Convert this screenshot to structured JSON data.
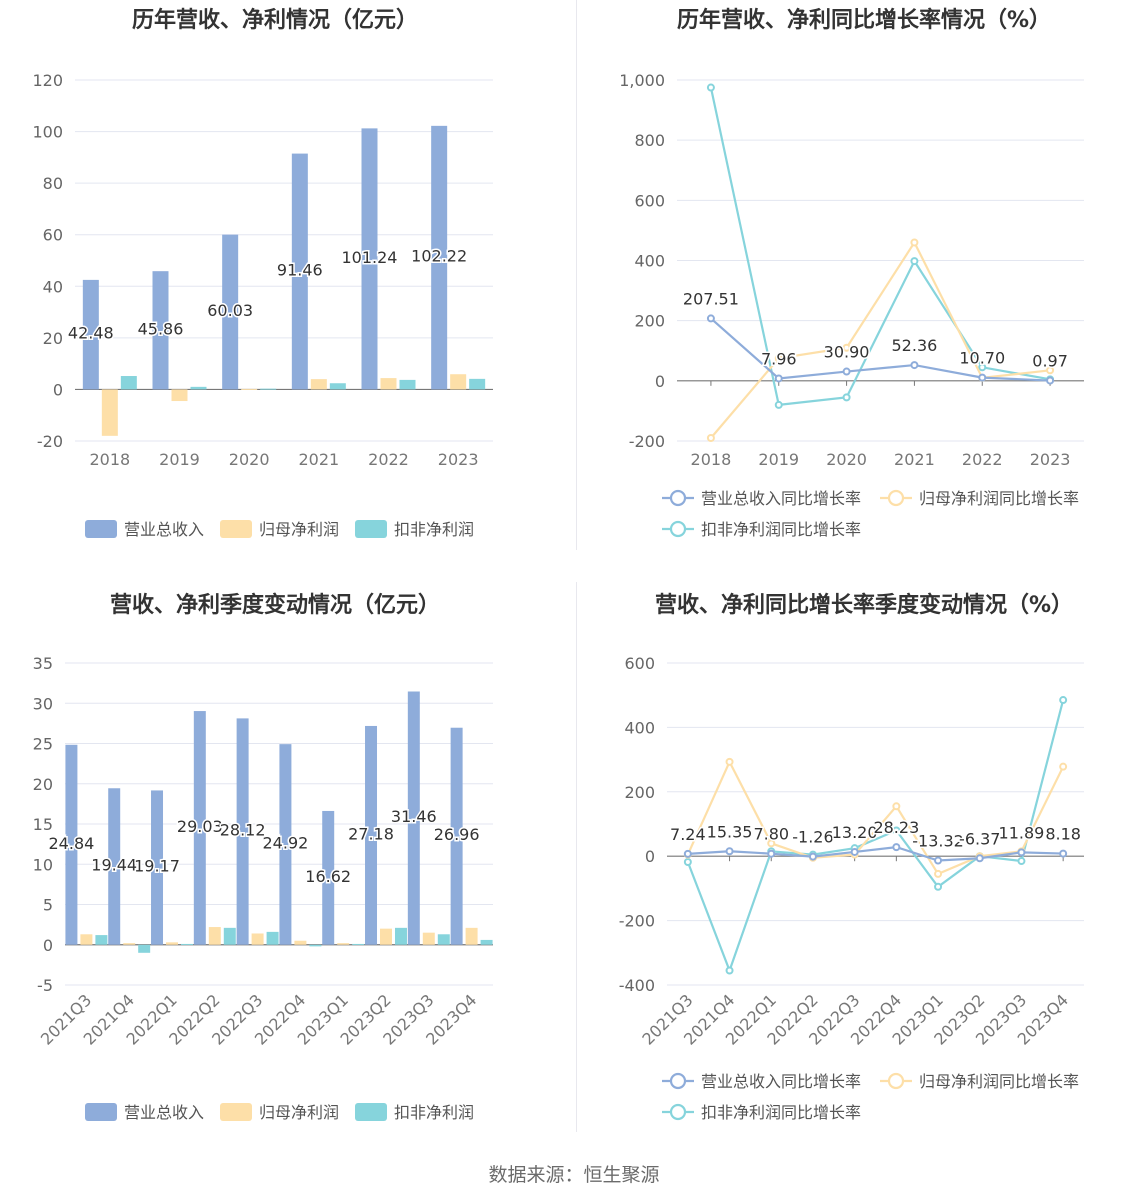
{
  "source_label": "数据来源：恒生聚源",
  "colors": {
    "revenue": "#8eacda",
    "net_profit": "#fddfa8",
    "deducted_profit": "#86d4dc"
  },
  "chart_data": [
    {
      "type": "bar",
      "title": "历年营收、净利情况（亿元）",
      "categories": [
        "2018",
        "2019",
        "2020",
        "2021",
        "2022",
        "2023"
      ],
      "ylim": [
        -20,
        120
      ],
      "yticks": [
        -20,
        0,
        20,
        40,
        60,
        80,
        100,
        120
      ],
      "ytick_labels": [
        "-20",
        "0",
        "20",
        "40",
        "60",
        "80",
        "100",
        "120"
      ],
      "legend": "bottom",
      "series": [
        {
          "name": "营业总收入",
          "color": "#8eacda",
          "values": [
            42.48,
            45.86,
            60.03,
            91.46,
            101.24,
            102.22
          ],
          "labels": [
            "42.48",
            "45.86",
            "60.03",
            "91.46",
            "101.24",
            "102.22"
          ]
        },
        {
          "name": "归母净利润",
          "color": "#fddfa8",
          "values": [
            -18.0,
            -4.5,
            0.2,
            4.0,
            4.4,
            5.9
          ],
          "labels": []
        },
        {
          "name": "扣非净利润",
          "color": "#86d4dc",
          "values": [
            5.2,
            1.0,
            0.3,
            2.4,
            3.7,
            4.1
          ],
          "labels": []
        }
      ]
    },
    {
      "type": "line",
      "title": "历年营收、净利同比增长率情况（%）",
      "categories": [
        "2018",
        "2019",
        "2020",
        "2021",
        "2022",
        "2023"
      ],
      "ylim": [
        -200,
        1000
      ],
      "yticks": [
        -200,
        0,
        200,
        400,
        600,
        800,
        1000
      ],
      "ytick_labels": [
        "-200",
        "0",
        "200",
        "400",
        "600",
        "800",
        "1,000"
      ],
      "legend": "bottom",
      "series": [
        {
          "name": "营业总收入同比增长率",
          "color": "#8eacda",
          "values": [
            207.51,
            7.96,
            30.9,
            52.36,
            10.7,
            0.97
          ],
          "labels": [
            "207.51",
            "7.96",
            "30.90",
            "52.36",
            "10.70",
            "0.97"
          ]
        },
        {
          "name": "归母净利润同比增长率",
          "color": "#fddfa8",
          "values": [
            -190,
            75,
            110,
            460,
            10,
            35
          ],
          "labels": []
        },
        {
          "name": "扣非净利润同比增长率",
          "color": "#86d4dc",
          "values": [
            975,
            -80,
            -55,
            398,
            45,
            5
          ],
          "labels": []
        }
      ]
    },
    {
      "type": "bar",
      "title": "营收、净利季度变动情况（亿元）",
      "categories": [
        "2021Q3",
        "2021Q4",
        "2022Q1",
        "2022Q2",
        "2022Q3",
        "2022Q4",
        "2023Q1",
        "2023Q2",
        "2023Q3",
        "2023Q4"
      ],
      "ylim": [
        -5,
        35
      ],
      "yticks": [
        -5,
        0,
        5,
        10,
        15,
        20,
        25,
        30,
        35
      ],
      "ytick_labels": [
        "-5",
        "0",
        "5",
        "10",
        "15",
        "20",
        "25",
        "30",
        "35"
      ],
      "legend": "bottom",
      "series": [
        {
          "name": "营业总收入",
          "color": "#8eacda",
          "values": [
            24.84,
            19.44,
            19.17,
            29.03,
            28.12,
            24.92,
            16.62,
            27.18,
            31.46,
            26.96
          ],
          "labels": [
            "24.84",
            "19.44",
            "19.17",
            "29.03",
            "28.12",
            "24.92",
            "16.62",
            "27.18",
            "31.46",
            "26.96"
          ]
        },
        {
          "name": "归母净利润",
          "color": "#fddfa8",
          "values": [
            1.3,
            0.2,
            0.3,
            2.2,
            1.4,
            0.5,
            0.2,
            2.0,
            1.5,
            2.1
          ],
          "labels": []
        },
        {
          "name": "扣非净利润",
          "color": "#86d4dc",
          "values": [
            1.2,
            -1.0,
            0.1,
            2.1,
            1.6,
            -0.2,
            0.1,
            2.1,
            1.3,
            0.6
          ],
          "labels": []
        }
      ]
    },
    {
      "type": "line",
      "title": "营收、净利同比增长率季度变动情况（%）",
      "categories": [
        "2021Q3",
        "2021Q4",
        "2022Q1",
        "2022Q2",
        "2022Q3",
        "2022Q4",
        "2023Q1",
        "2023Q2",
        "2023Q3",
        "2023Q4"
      ],
      "ylim": [
        -400,
        600
      ],
      "yticks": [
        -400,
        -200,
        0,
        200,
        400,
        600
      ],
      "ytick_labels": [
        "-400",
        "-200",
        "0",
        "200",
        "400",
        "600"
      ],
      "legend": "bottom",
      "series": [
        {
          "name": "营业总收入同比增长率",
          "color": "#8eacda",
          "values": [
            7.24,
            15.35,
            7.8,
            -1.26,
            13.2,
            28.23,
            -13.32,
            -6.37,
            11.89,
            8.18
          ],
          "labels": [
            "7.24",
            "15.35",
            "7.80",
            "-1.26",
            "13.20",
            "28.23",
            "-13.32",
            "-6.37",
            "11.89",
            "8.18"
          ]
        },
        {
          "name": "归母净利润同比增长率",
          "color": "#fddfa8",
          "values": [
            5,
            293,
            40,
            -5,
            5,
            155,
            -55,
            0,
            15,
            278
          ],
          "labels": []
        },
        {
          "name": "扣非净利润同比增长率",
          "color": "#86d4dc",
          "values": [
            -18,
            -355,
            15,
            5,
            25,
            80,
            -95,
            0,
            -15,
            485
          ],
          "labels": []
        }
      ]
    }
  ]
}
